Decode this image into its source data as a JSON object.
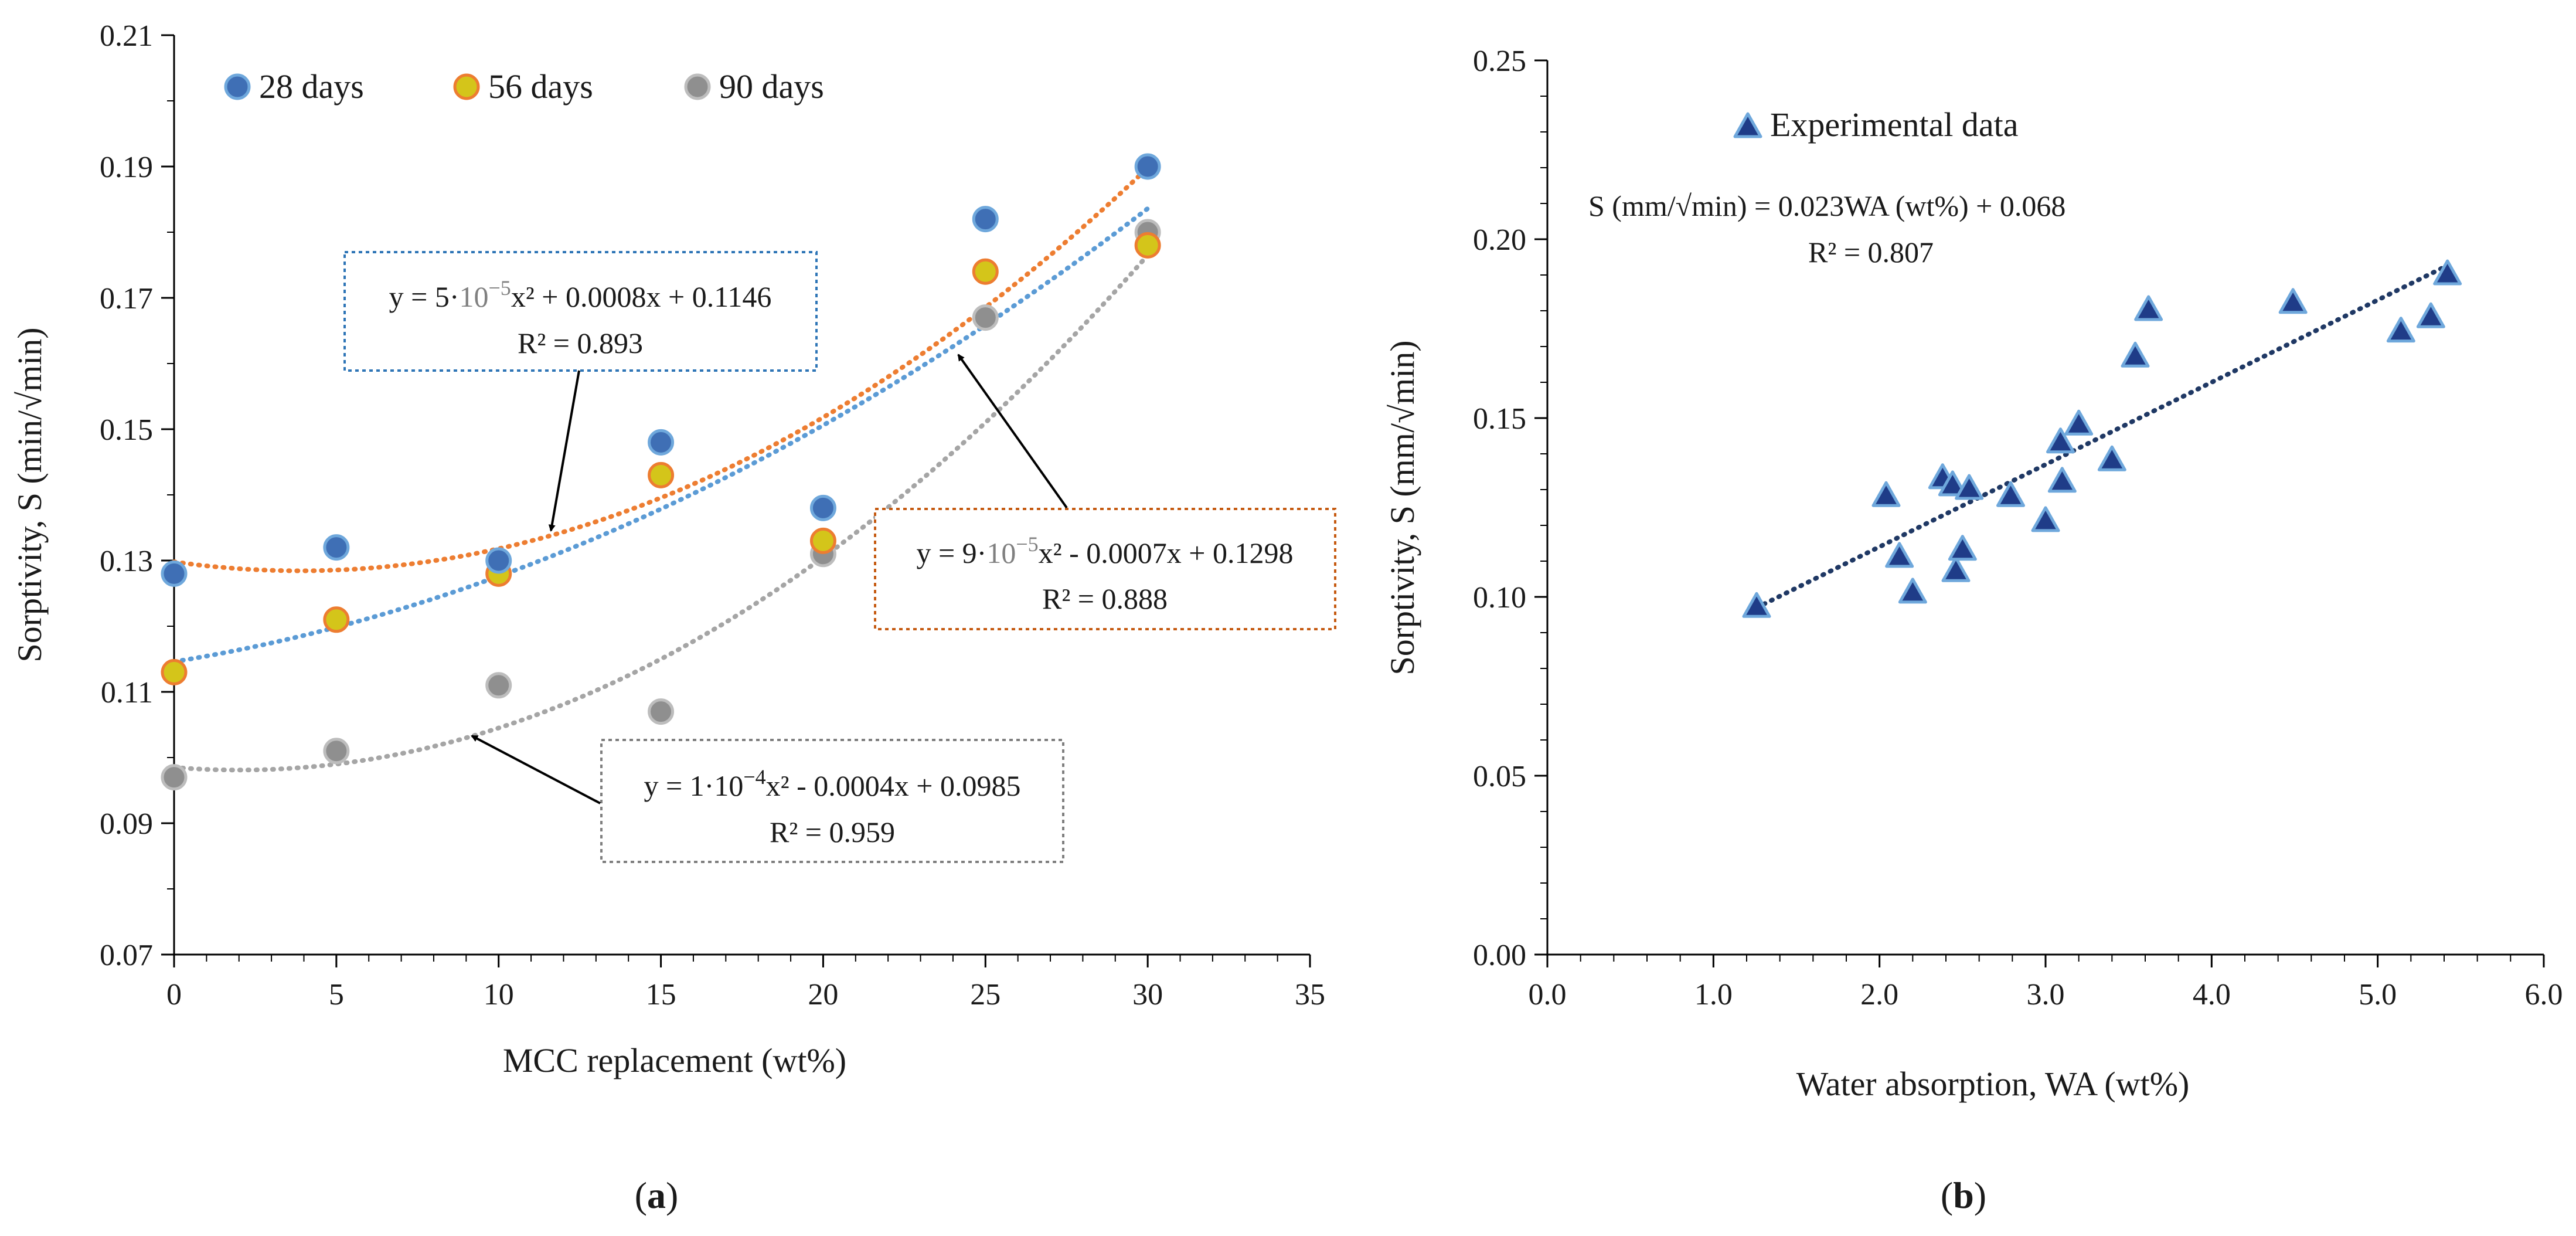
{
  "chart_data": [
    {
      "panel": "a",
      "type": "scatter",
      "xlabel": "MCC replacement (wt%)",
      "ylabel": "Sorptivity, S (min/√min)",
      "xlim": [
        0,
        35
      ],
      "ylim": [
        0.07,
        0.21
      ],
      "xticks": [
        "0",
        "5",
        "10",
        "15",
        "20",
        "25",
        "30",
        "35"
      ],
      "yticks": [
        "0.07",
        "0.09",
        "0.11",
        "0.13",
        "0.15",
        "0.17",
        "0.19",
        "0.21"
      ],
      "colors": {
        "s28": "#3f6fb5",
        "s56": "#d4c51a",
        "s90": "#8f8f8f",
        "fit28": "#5b9bd5",
        "fit56": "#ed7d31",
        "fit90": "#a5a5a5"
      },
      "series": [
        {
          "name": "28 days",
          "x": [
            0,
            5,
            10,
            15,
            20,
            25,
            30
          ],
          "y": [
            0.128,
            0.132,
            0.13,
            0.148,
            0.138,
            0.182,
            0.19
          ],
          "fit": {
            "a": 5e-05,
            "b": 0.0008,
            "c": 0.1146
          },
          "equation": {
            "lead": "y = 5·",
            "exp_base": "10",
            "exp_pow": "−5",
            "tail": "x² + 0.0008x + 0.1146",
            "r2": "R² = 0.893"
          }
        },
        {
          "name": "56 days",
          "x": [
            0,
            5,
            10,
            15,
            20,
            25,
            30
          ],
          "y": [
            0.113,
            0.121,
            0.128,
            0.143,
            0.133,
            0.174,
            0.178
          ],
          "fit": {
            "a": 9e-05,
            "b": -0.0007,
            "c": 0.1298
          },
          "equation": {
            "lead": "y = 9·",
            "exp_base": "10",
            "exp_pow": "−5",
            "tail": "x² - 0.0007x + 0.1298",
            "r2": "R² = 0.888"
          }
        },
        {
          "name": "90 days",
          "x": [
            0,
            5,
            10,
            15,
            20,
            25,
            30
          ],
          "y": [
            0.097,
            0.101,
            0.111,
            0.107,
            0.131,
            0.167,
            0.18
          ],
          "fit": {
            "a": 0.0001,
            "b": -0.0004,
            "c": 0.0985
          },
          "equation": {
            "lead": "y = 1·",
            "exp_base": "10",
            "exp_pow": "−4",
            "tail": "x² - 0.0004x + 0.0985",
            "r2": "R² = 0.959"
          }
        }
      ],
      "panel_label": "a"
    },
    {
      "panel": "b",
      "type": "scatter",
      "xlabel": "Water absorption, WA (wt%)",
      "ylabel": "Sorptivity, S (mm/√min)",
      "xlim": [
        0,
        6
      ],
      "ylim": [
        0,
        0.25
      ],
      "xticks": [
        "0.0",
        "1.0",
        "2.0",
        "3.0",
        "4.0",
        "5.0",
        "6.0"
      ],
      "yticks": [
        "0.00",
        "0.05",
        "0.10",
        "0.15",
        "0.20",
        "0.25"
      ],
      "colors": {
        "marker": "#1f3c88",
        "edge": "#6fa8dc",
        "fit": "#1f3864"
      },
      "series": [
        {
          "name": "Experimental data",
          "x": [
            1.26,
            2.04,
            2.12,
            2.2,
            2.38,
            2.44,
            2.46,
            2.5,
            2.54,
            2.79,
            3.0,
            3.09,
            3.1,
            3.2,
            3.4,
            3.54,
            3.62,
            4.49,
            5.14,
            5.32,
            5.42
          ],
          "y": [
            0.097,
            0.128,
            0.111,
            0.101,
            0.133,
            0.131,
            0.107,
            0.113,
            0.13,
            0.128,
            0.121,
            0.143,
            0.132,
            0.148,
            0.138,
            0.167,
            0.18,
            0.182,
            0.174,
            0.178,
            0.19
          ]
        }
      ],
      "fit": {
        "slope": 0.023,
        "intercept": 0.068,
        "x_range": [
          1.26,
          5.42
        ]
      },
      "equation_text": "S (mm/√min) = 0.023WA (wt%) + 0.068",
      "r2_text": "R² = 0.807",
      "panel_label": "b"
    }
  ]
}
